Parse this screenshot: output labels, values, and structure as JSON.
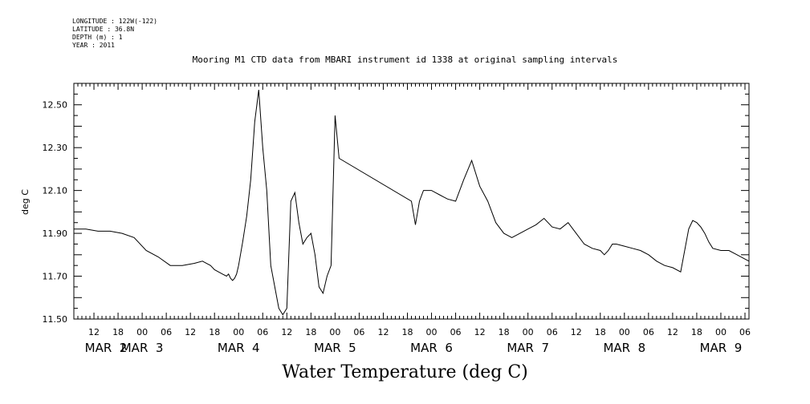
{
  "meta": {
    "longitude": "LONGITUDE : 122W(-122)",
    "latitude": "LATITUDE : 36.8N",
    "depth": "DEPTH (m) : 1",
    "year": "YEAR : 2011"
  },
  "chart_data": {
    "type": "line",
    "title": "Mooring M1 CTD data from MBARI instrument id 1338 at original sampling intervals",
    "bottom_title": "Water Temperature (deg C)",
    "ylabel": "deg C",
    "xlabel": "",
    "ylim": [
      11.5,
      12.6
    ],
    "xlim_hours": [
      0,
      168
    ],
    "y_ticks": [
      "11.50",
      "11.70",
      "11.90",
      "12.10",
      "12.30",
      "12.50"
    ],
    "x_tick_labels": [
      "12",
      "18",
      "00",
      "06",
      "12",
      "18",
      "00",
      "06",
      "12",
      "18",
      "00",
      "06",
      "12",
      "18",
      "00",
      "06",
      "12",
      "18",
      "00",
      "06",
      "12",
      "18",
      "00",
      "06",
      "12",
      "18",
      "00",
      "06"
    ],
    "date_labels": [
      "MAR  2",
      "MAR  3",
      "MAR  4",
      "MAR  5",
      "MAR  6",
      "MAR  7",
      "MAR  8",
      "MAR  9"
    ],
    "series": [
      {
        "x": [
          "Mar 2 07:00",
          "Mar 2 10:00",
          "Mar 2 13:00",
          "Mar 2 16:00",
          "Mar 2 19:00",
          "Mar 2 22:00",
          "Mar 3 01:00",
          "Mar 3 04:00",
          "Mar 3 07:00",
          "Mar 3 10:00",
          "Mar 3 13:00",
          "Mar 3 15:00",
          "Mar 3 17:00",
          "Mar 3 18:00",
          "Mar 3 19:00",
          "Mar 3 20:00",
          "Mar 3 21:00",
          "Mar 3 21:30",
          "Mar 3 22:00",
          "Mar 3 22:30",
          "Mar 3 23:00",
          "Mar 3 23:30",
          "Mar 4 00:00",
          "Mar 4 01:00",
          "Mar 4 02:00",
          "Mar 4 03:00",
          "Mar 4 04:00",
          "Mar 4 05:00",
          "Mar 4 06:00",
          "Mar 4 07:00",
          "Mar 4 08:00",
          "Mar 4 09:00",
          "Mar 4 10:00",
          "Mar 4 11:00",
          "Mar 4 12:00",
          "Mar 4 13:00",
          "Mar 4 14:00",
          "Mar 4 15:00",
          "Mar 4 16:00",
          "Mar 4 17:00",
          "Mar 4 18:00",
          "Mar 4 19:00",
          "Mar 4 20:00",
          "Mar 4 21:00",
          "Mar 4 22:00",
          "Mar 4 23:00",
          "Mar 5 00:00",
          "Mar 5 01:00",
          "Mar 5 19:00",
          "Mar 5 20:00",
          "Mar 5 21:00",
          "Mar 5 22:00",
          "Mar 5 23:00",
          "Mar 6 00:00",
          "Mar 6 01:00",
          "Mar 6 02:00",
          "Mar 6 03:00",
          "Mar 6 04:00",
          "Mar 6 06:00",
          "Mar 6 08:00",
          "Mar 6 10:00",
          "Mar 6 12:00",
          "Mar 6 14:00",
          "Mar 6 16:00",
          "Mar 6 18:00",
          "Mar 6 20:00",
          "Mar 6 22:00",
          "Mar 7 00:00",
          "Mar 7 02:00",
          "Mar 7 04:00",
          "Mar 7 06:00",
          "Mar 7 08:00",
          "Mar 7 10:00",
          "Mar 7 12:00",
          "Mar 7 14:00",
          "Mar 7 16:00",
          "Mar 7 18:00",
          "Mar 7 19:00",
          "Mar 7 20:00",
          "Mar 7 21:00",
          "Mar 7 22:00",
          "Mar 8 00:00",
          "Mar 8 02:00",
          "Mar 8 04:00",
          "Mar 8 06:00",
          "Mar 8 08:00",
          "Mar 8 10:00",
          "Mar 8 12:00",
          "Mar 8 14:00",
          "Mar 8 16:00",
          "Mar 8 17:00",
          "Mar 8 18:00",
          "Mar 8 19:00",
          "Mar 8 20:00",
          "Mar 8 21:00",
          "Mar 8 22:00",
          "Mar 9 00:00",
          "Mar 9 02:00",
          "Mar 9 04:00",
          "Mar 9 06:00",
          "Mar 9 07:00"
        ],
        "y": [
          11.92,
          11.92,
          11.91,
          11.91,
          11.9,
          11.88,
          11.82,
          11.79,
          11.75,
          11.75,
          11.76,
          11.77,
          11.75,
          11.73,
          11.72,
          11.71,
          11.7,
          11.71,
          11.69,
          11.68,
          11.69,
          11.71,
          11.75,
          11.86,
          11.98,
          12.15,
          12.42,
          12.57,
          12.3,
          12.1,
          11.75,
          11.65,
          11.55,
          11.52,
          11.55,
          12.05,
          12.09,
          11.95,
          11.85,
          11.88,
          11.9,
          11.8,
          11.65,
          11.62,
          11.7,
          11.75,
          12.45,
          12.25,
          12.05,
          11.94,
          12.05,
          12.1,
          12.1,
          12.1,
          12.09,
          12.08,
          12.07,
          12.06,
          12.05,
          12.15,
          12.24,
          12.12,
          12.05,
          11.95,
          11.9,
          11.88,
          11.9,
          11.92,
          11.94,
          11.97,
          11.93,
          11.92,
          11.95,
          11.9,
          11.85,
          11.83,
          11.82,
          11.8,
          11.82,
          11.85,
          11.85,
          11.84,
          11.83,
          11.82,
          11.8,
          11.77,
          11.75,
          11.74,
          11.72,
          11.92,
          11.96,
          11.95,
          11.93,
          11.9,
          11.86,
          11.83,
          11.82,
          11.82,
          11.8,
          11.78,
          11.77
        ]
      }
    ]
  }
}
